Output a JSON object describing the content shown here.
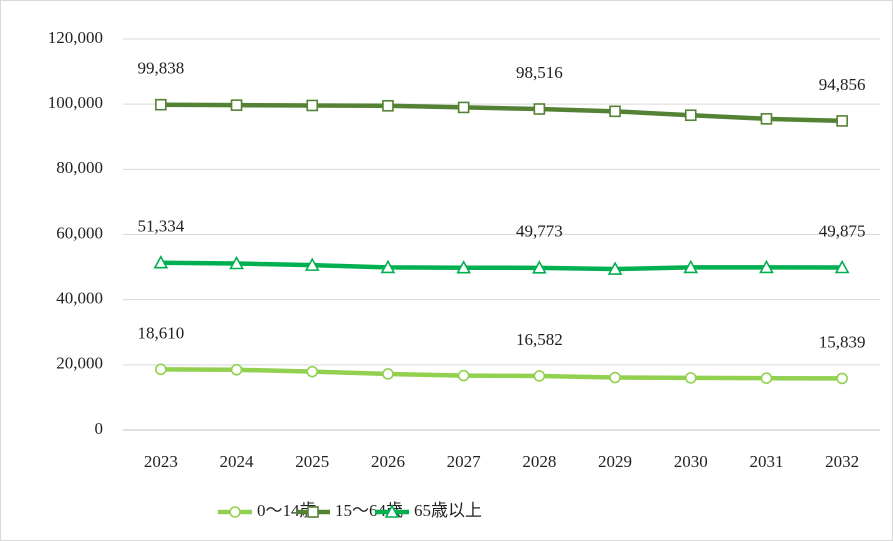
{
  "chart_data": {
    "type": "line",
    "categories": [
      "2023",
      "2024",
      "2025",
      "2026",
      "2027",
      "2028",
      "2029",
      "2030",
      "2031",
      "2032"
    ],
    "series": [
      {
        "name": "0～14歳",
        "color": "#92d050",
        "marker": "circle",
        "values": [
          18610,
          18500,
          17900,
          17200,
          16700,
          16582,
          16100,
          16000,
          15900,
          15839
        ],
        "value_labels": [
          "18,610",
          null,
          null,
          null,
          null,
          "16,582",
          null,
          null,
          null,
          "15,839"
        ]
      },
      {
        "name": "15～64歳",
        "color": "#548235",
        "marker": "square",
        "values": [
          99838,
          99700,
          99600,
          99500,
          99000,
          98516,
          97800,
          96600,
          95500,
          94856
        ],
        "value_labels": [
          "99,838",
          null,
          null,
          null,
          null,
          "98,516",
          null,
          null,
          null,
          "94,856"
        ]
      },
      {
        "name": "65歳以上",
        "color": "#00b050",
        "marker": "triangle",
        "values": [
          51334,
          51100,
          50600,
          49900,
          49800,
          49773,
          49400,
          49900,
          49900,
          49875
        ],
        "value_labels": [
          "51,334",
          null,
          null,
          null,
          null,
          "49,773",
          null,
          null,
          null,
          "49,875"
        ]
      }
    ],
    "ylim": [
      0,
      120000
    ],
    "yticks": [
      0,
      {
        "value": 20000,
        "label": "20,000"
      },
      {
        "value": 40000,
        "label": "40,000"
      },
      {
        "value": 60000,
        "label": "60,000"
      },
      {
        "value": 80000,
        "label": "80,000"
      },
      {
        "value": 100000,
        "label": "100,000"
      },
      {
        "value": 120000,
        "label": "120,000"
      }
    ],
    "grid": true,
    "legend": "bottom"
  }
}
